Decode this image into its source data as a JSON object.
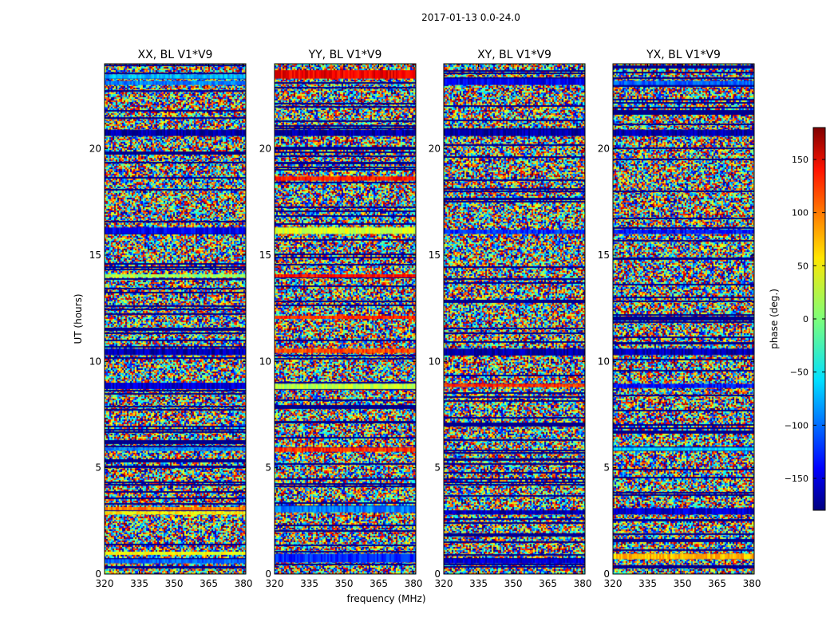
{
  "figure": {
    "suptitle": "2017-01-13 0.0-24.0",
    "xlabel": "frequency (MHz)",
    "ylabel": "UT (hours)"
  },
  "chart_data": {
    "type": "heatmap",
    "suptitle": "2017-01-13 0.0-24.0",
    "xlabel": "frequency (MHz)",
    "ylabel": "UT (hours)",
    "xlim": [
      320,
      381
    ],
    "ylim": [
      0,
      24
    ],
    "xticks": [
      320,
      335,
      350,
      365,
      380
    ],
    "yticks": [
      0,
      5,
      10,
      15,
      20
    ],
    "colormap": "jet",
    "panels": [
      {
        "title": "XX, BL V1*V9",
        "bands": [
          {
            "t0": 0.5,
            "t1": 0.7,
            "phase": -100
          },
          {
            "t0": 0.9,
            "t1": 1.05,
            "phase": 40
          },
          {
            "t0": 2.8,
            "t1": 2.95,
            "phase": 50
          },
          {
            "t0": 3.0,
            "t1": 3.15,
            "phase": 90
          },
          {
            "t0": 5.8,
            "t1": 5.95,
            "phase": -90
          },
          {
            "t0": 8.7,
            "t1": 9.0,
            "phase": -150
          },
          {
            "t0": 10.3,
            "t1": 10.6,
            "phase": -160
          },
          {
            "t0": 13.95,
            "t1": 14.1,
            "phase": 10
          },
          {
            "t0": 16.0,
            "t1": 16.3,
            "phase": -140
          },
          {
            "t0": 20.6,
            "t1": 20.9,
            "phase": -165
          },
          {
            "t0": 23.0,
            "t1": 23.2,
            "phase": -90
          },
          {
            "t0": 23.3,
            "t1": 23.5,
            "phase": -70
          }
        ]
      },
      {
        "title": "YY, BL V1*V9",
        "bands": [
          {
            "t0": 0.55,
            "t1": 0.95,
            "phase": -120
          },
          {
            "t0": 2.9,
            "t1": 3.2,
            "phase": -90
          },
          {
            "t0": 5.75,
            "t1": 5.95,
            "phase": 120
          },
          {
            "t0": 8.7,
            "t1": 8.95,
            "phase": 20
          },
          {
            "t0": 10.4,
            "t1": 10.6,
            "phase": 110
          },
          {
            "t0": 12.0,
            "t1": 12.15,
            "phase": 120
          },
          {
            "t0": 13.95,
            "t1": 14.1,
            "phase": 130
          },
          {
            "t0": 16.0,
            "t1": 16.3,
            "phase": 30
          },
          {
            "t0": 18.5,
            "t1": 18.7,
            "phase": 130
          },
          {
            "t0": 20.6,
            "t1": 20.9,
            "phase": -165
          },
          {
            "t0": 23.3,
            "t1": 23.7,
            "phase": 140
          }
        ]
      },
      {
        "title": "XY, BL V1*V9",
        "bands": [
          {
            "t0": 0.5,
            "t1": 0.7,
            "phase": -150
          },
          {
            "t0": 2.8,
            "t1": 3.0,
            "phase": -160
          },
          {
            "t0": 8.8,
            "t1": 8.95,
            "phase": 120
          },
          {
            "t0": 10.3,
            "t1": 10.6,
            "phase": -165
          },
          {
            "t0": 16.0,
            "t1": 16.2,
            "phase": -120
          },
          {
            "t0": 20.6,
            "t1": 20.9,
            "phase": -165
          },
          {
            "t0": 23.0,
            "t1": 23.3,
            "phase": -140
          }
        ]
      },
      {
        "title": "YX, BL V1*V9",
        "bands": [
          {
            "t0": 0.7,
            "t1": 0.95,
            "phase": 70
          },
          {
            "t0": 2.8,
            "t1": 3.1,
            "phase": -150
          },
          {
            "t0": 5.8,
            "t1": 5.95,
            "phase": -60
          },
          {
            "t0": 8.75,
            "t1": 8.95,
            "phase": -130
          },
          {
            "t0": 10.3,
            "t1": 10.6,
            "phase": -160
          },
          {
            "t0": 16.0,
            "t1": 16.2,
            "phase": -130
          },
          {
            "t0": 20.6,
            "t1": 20.9,
            "phase": -165
          },
          {
            "t0": 23.0,
            "t1": 23.2,
            "phase": -100
          }
        ]
      }
    ],
    "colorbar": {
      "label": "phase (deg.)",
      "range": [
        -180,
        180
      ],
      "ticks": [
        150,
        100,
        50,
        0,
        -50,
        -100,
        -150
      ],
      "tick_labels": [
        "150",
        "100",
        "50",
        "0",
        "−50",
        "−100",
        "−150"
      ]
    }
  }
}
